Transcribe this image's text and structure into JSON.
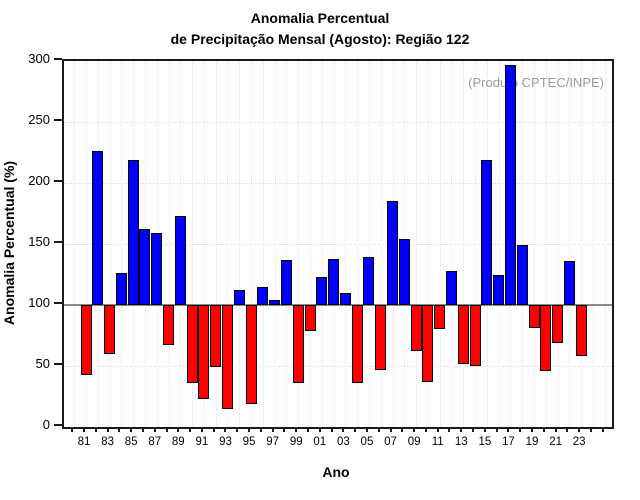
{
  "title": {
    "line1": "Anomalia Percentual",
    "line2": "de Precipitação Mensal (Agosto): Região 122"
  },
  "annotation": "(Produto CPTEC/INPE)",
  "chart_data": {
    "type": "bar",
    "title": "Anomalia Percentual de Precipitação Mensal (Agosto): Região 122",
    "xlabel": "Ano",
    "ylabel": "Anomalia Percentual (%)",
    "ylim": [
      0,
      300
    ],
    "yticks": [
      0,
      50,
      100,
      150,
      200,
      250,
      300
    ],
    "baseline": 100,
    "grid": "dotted",
    "legend": "none",
    "above_color": "#0000ff",
    "below_color": "#ff0000",
    "categories": [
      "81",
      "82",
      "83",
      "84",
      "85",
      "86",
      "87",
      "88",
      "89",
      "90",
      "91",
      "92",
      "93",
      "94",
      "95",
      "96",
      "97",
      "98",
      "99",
      "00",
      "01",
      "02",
      "03",
      "04",
      "05",
      "06",
      "07",
      "08",
      "09",
      "10",
      "11",
      "12",
      "13",
      "14",
      "15",
      "16",
      "17",
      "18",
      "19",
      "20",
      "21",
      "22",
      "23"
    ],
    "values": [
      43,
      226,
      60,
      126,
      219,
      162,
      159,
      67,
      173,
      36,
      23,
      49,
      15,
      112,
      19,
      115,
      104,
      137,
      36,
      79,
      123,
      138,
      110,
      36,
      139,
      47,
      185,
      154,
      62,
      37,
      80,
      128,
      52,
      50,
      219,
      125,
      297,
      149,
      81,
      46,
      69,
      136,
      58
    ],
    "x_tick_labels_shown": [
      "81",
      "83",
      "85",
      "87",
      "89",
      "91",
      "93",
      "95",
      "97",
      "99",
      "01",
      "03",
      "05",
      "07",
      "09",
      "11",
      "13",
      "15",
      "17",
      "19",
      "21",
      "23"
    ]
  }
}
